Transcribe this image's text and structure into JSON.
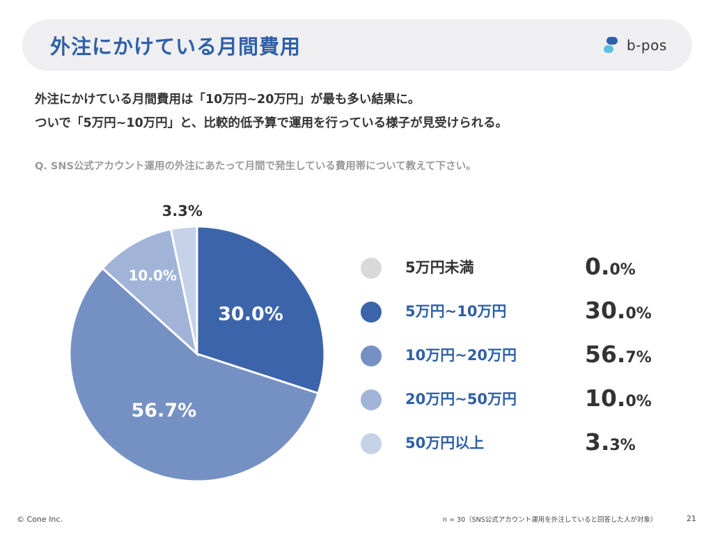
{
  "header": {
    "title": "外注にかけている月間費用",
    "logo_text": "b-pos",
    "logo_icon": "b-pos-logo-icon"
  },
  "summary": {
    "line1": "外注にかけている月間費用は「10万円~20万円」が最も多い結果に。",
    "line2": "ついで「5万円~10万円」と、比較的低予算で運用を行っている様子が見受けられる。"
  },
  "question": "Q. SNS公式アカウント運用の外注にあたって月間で発生している費用帯について教えて下さい。",
  "chart_data": {
    "type": "pie",
    "start": "12 o'clock, clockwise",
    "categories": [
      "5万円未満",
      "5万円~10万円",
      "10万円~20万円",
      "20万円~50万円",
      "50万円以上"
    ],
    "values": [
      0.0,
      30.0,
      56.7,
      10.0,
      3.3
    ],
    "slice_labels": [
      "",
      "30.0%",
      "56.7%",
      "10.0%",
      "3.3%"
    ],
    "value_text": [
      {
        "main": "0.",
        "small": "0%"
      },
      {
        "main": "30.",
        "small": "0%"
      },
      {
        "main": "56.",
        "small": "7%"
      },
      {
        "main": "10.",
        "small": "0%"
      },
      {
        "main": "3.",
        "small": "3%"
      }
    ],
    "colors": [
      "#d9d9d9",
      "#3b64aa",
      "#7591c4",
      "#a1b4d8",
      "#c5d2e8"
    ],
    "label_colors": [
      "#333333",
      "#2e5fa8",
      "#2e5fa8",
      "#2e5fa8",
      "#2e5fa8"
    ],
    "legend": "right"
  },
  "footer": {
    "copyright": "© Cone Inc.",
    "note": "n = 30（SNS公式アカウント運用を外注していると回答した人が対象）",
    "page": "21"
  }
}
